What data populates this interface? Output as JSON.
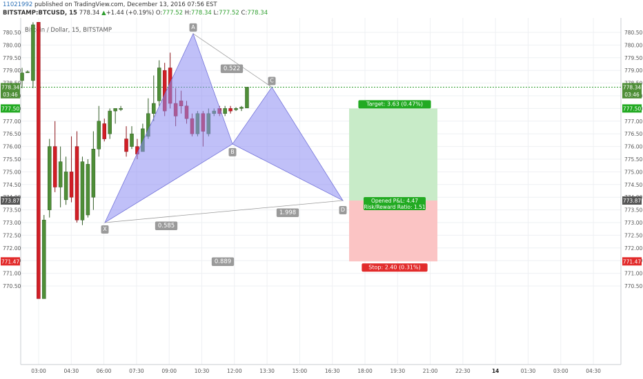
{
  "header": {
    "user_id": "11021992",
    "published_text": "published on TradingView.com, December 13, 2016 07:56 EST",
    "symbol": "BITSTAMP:BTCUSD, 15",
    "last": "778.34",
    "change": "+1.44 (+0.19%)",
    "open_label": "O:",
    "open": "777.52",
    "high_label": "H:",
    "high": "778.34",
    "low_label": "L:",
    "low": "777.52",
    "close_label": "C:",
    "close": "778.34"
  },
  "chart_title": "Bitcoin / Dollar, 15, BITSTAMP",
  "colors": {
    "up": "#4e8e37",
    "down": "#d11e26",
    "pattern_fill": "#8c8cf2",
    "target_zone": "#c8ebc8",
    "stop_zone": "#fbc4c4",
    "current_price_line": "#2e9e2e"
  },
  "chart_data": {
    "type": "candlestick",
    "yticks": [
      "780.50",
      "780.00",
      "779.50",
      "779.00",
      "778.50",
      "778.00",
      "777.50",
      "777.00",
      "776.50",
      "776.00",
      "775.50",
      "775.00",
      "774.50",
      "774.00",
      "773.50",
      "773.00",
      "772.50",
      "772.00",
      "771.50",
      "771.00",
      "770.50"
    ],
    "xticks": [
      "03:00",
      "04:30",
      "06:00",
      "07:30",
      "09:00",
      "10:30",
      "12:00",
      "13:30",
      "15:00",
      "16:30",
      "18:00",
      "19:30",
      "21:00",
      "22:30",
      "14",
      "01:30",
      "03:00",
      "04:30"
    ],
    "price_badges": [
      {
        "label": "778.34",
        "value": 778.34,
        "color": "#4e8e37"
      },
      {
        "label": "03:46",
        "value": 778.06,
        "color": "#4e8e37"
      },
      {
        "label": "777.50",
        "value": 777.5,
        "color": "#22aa22"
      },
      {
        "label": "773.87",
        "value": 773.87,
        "color": "#555555"
      },
      {
        "label": "771.47",
        "value": 771.47,
        "color": "#e22b2b"
      }
    ],
    "candles": [
      {
        "o": 778.6,
        "h": 779.1,
        "l": 778.3,
        "c": 778.9
      },
      {
        "o": 778.95,
        "h": 779.0,
        "l": 778.9,
        "c": 778.95
      },
      {
        "o": 778.6,
        "h": 780.9,
        "l": 778.3,
        "c": 780.8
      },
      {
        "o": 780.9,
        "h": 780.9,
        "l": 770.0,
        "c": 770.0
      },
      {
        "o": 770.0,
        "h": 773.3,
        "l": 770.0,
        "c": 773.1
      },
      {
        "o": 773.5,
        "h": 776.3,
        "l": 773.2,
        "c": 776.0
      },
      {
        "o": 776.0,
        "h": 777.0,
        "l": 774.2,
        "c": 774.4
      },
      {
        "o": 774.4,
        "h": 776.0,
        "l": 773.6,
        "c": 775.4
      },
      {
        "o": 773.9,
        "h": 775.6,
        "l": 773.7,
        "c": 775.0
      },
      {
        "o": 775.0,
        "h": 776.4,
        "l": 773.8,
        "c": 774.0
      },
      {
        "o": 776.0,
        "h": 776.6,
        "l": 773.0,
        "c": 773.1
      },
      {
        "o": 773.1,
        "h": 775.6,
        "l": 772.9,
        "c": 775.4
      },
      {
        "o": 773.3,
        "h": 775.5,
        "l": 773.2,
        "c": 775.3
      },
      {
        "o": 774.0,
        "h": 776.6,
        "l": 773.5,
        "c": 775.9
      },
      {
        "o": 775.9,
        "h": 777.6,
        "l": 775.6,
        "c": 777.0
      },
      {
        "o": 776.9,
        "h": 777.1,
        "l": 776.2,
        "c": 776.3
      },
      {
        "o": 776.5,
        "h": 777.5,
        "l": 776.3,
        "c": 777.4
      },
      {
        "o": 777.4,
        "h": 777.5,
        "l": 776.9,
        "c": 777.5
      },
      {
        "o": 777.5,
        "h": 777.6,
        "l": 777.4,
        "c": 777.5
      },
      {
        "o": 776.3,
        "h": 776.8,
        "l": 775.6,
        "c": 775.8
      },
      {
        "o": 776.0,
        "h": 776.8,
        "l": 775.9,
        "c": 776.5
      },
      {
        "o": 776.0,
        "h": 776.3,
        "l": 775.5,
        "c": 775.7
      },
      {
        "o": 775.8,
        "h": 776.9,
        "l": 775.8,
        "c": 776.7
      },
      {
        "o": 776.4,
        "h": 777.9,
        "l": 776.3,
        "c": 777.3
      },
      {
        "o": 777.3,
        "h": 778.8,
        "l": 777.0,
        "c": 777.7
      },
      {
        "o": 777.8,
        "h": 779.4,
        "l": 777.6,
        "c": 779.1
      },
      {
        "o": 779.0,
        "h": 779.3,
        "l": 777.2,
        "c": 777.4
      },
      {
        "o": 779.1,
        "h": 779.7,
        "l": 777.5,
        "c": 777.7
      },
      {
        "o": 777.7,
        "h": 778.3,
        "l": 776.8,
        "c": 777.2
      },
      {
        "o": 777.8,
        "h": 778.2,
        "l": 777.3,
        "c": 777.6
      },
      {
        "o": 777.6,
        "h": 777.8,
        "l": 776.9,
        "c": 777.1
      },
      {
        "o": 777.1,
        "h": 777.3,
        "l": 776.4,
        "c": 776.5
      },
      {
        "o": 776.5,
        "h": 777.4,
        "l": 776.4,
        "c": 777.3
      },
      {
        "o": 777.3,
        "h": 777.4,
        "l": 776.0,
        "c": 776.6
      },
      {
        "o": 776.5,
        "h": 777.5,
        "l": 776.4,
        "c": 777.3
      },
      {
        "o": 777.3,
        "h": 777.5,
        "l": 777.2,
        "c": 777.4
      },
      {
        "o": 777.5,
        "h": 777.6,
        "l": 777.2,
        "c": 777.3
      },
      {
        "o": 777.3,
        "h": 777.6,
        "l": 777.2,
        "c": 777.5
      },
      {
        "o": 777.5,
        "h": 777.6,
        "l": 777.3,
        "c": 777.4
      },
      {
        "o": 777.45,
        "h": 777.55,
        "l": 777.4,
        "c": 777.5
      },
      {
        "o": 777.5,
        "h": 777.6,
        "l": 777.4,
        "c": 777.55
      },
      {
        "o": 777.52,
        "h": 778.34,
        "l": 777.52,
        "c": 778.34
      }
    ],
    "pattern": {
      "points": [
        {
          "label": "X",
          "value": 773.0
        },
        {
          "label": "A",
          "value": 780.45
        },
        {
          "label": "B",
          "value": 776.1
        },
        {
          "label": "C",
          "value": 778.34
        },
        {
          "label": "D",
          "value": 773.87
        }
      ],
      "ratios": [
        "0.522",
        "0.585",
        "1.998",
        "0.889"
      ]
    },
    "position": {
      "target_label": "Target: 3.63 (0.47%)",
      "target_price": 777.5,
      "entry_label_line1": "Opened P&L: 4.47",
      "entry_label_line2": "Risk/Reward Ratio: 1.51",
      "entry_price": 773.87,
      "stop_label": "Stop: 2.40 (0.31%)",
      "stop_price": 771.47
    }
  }
}
